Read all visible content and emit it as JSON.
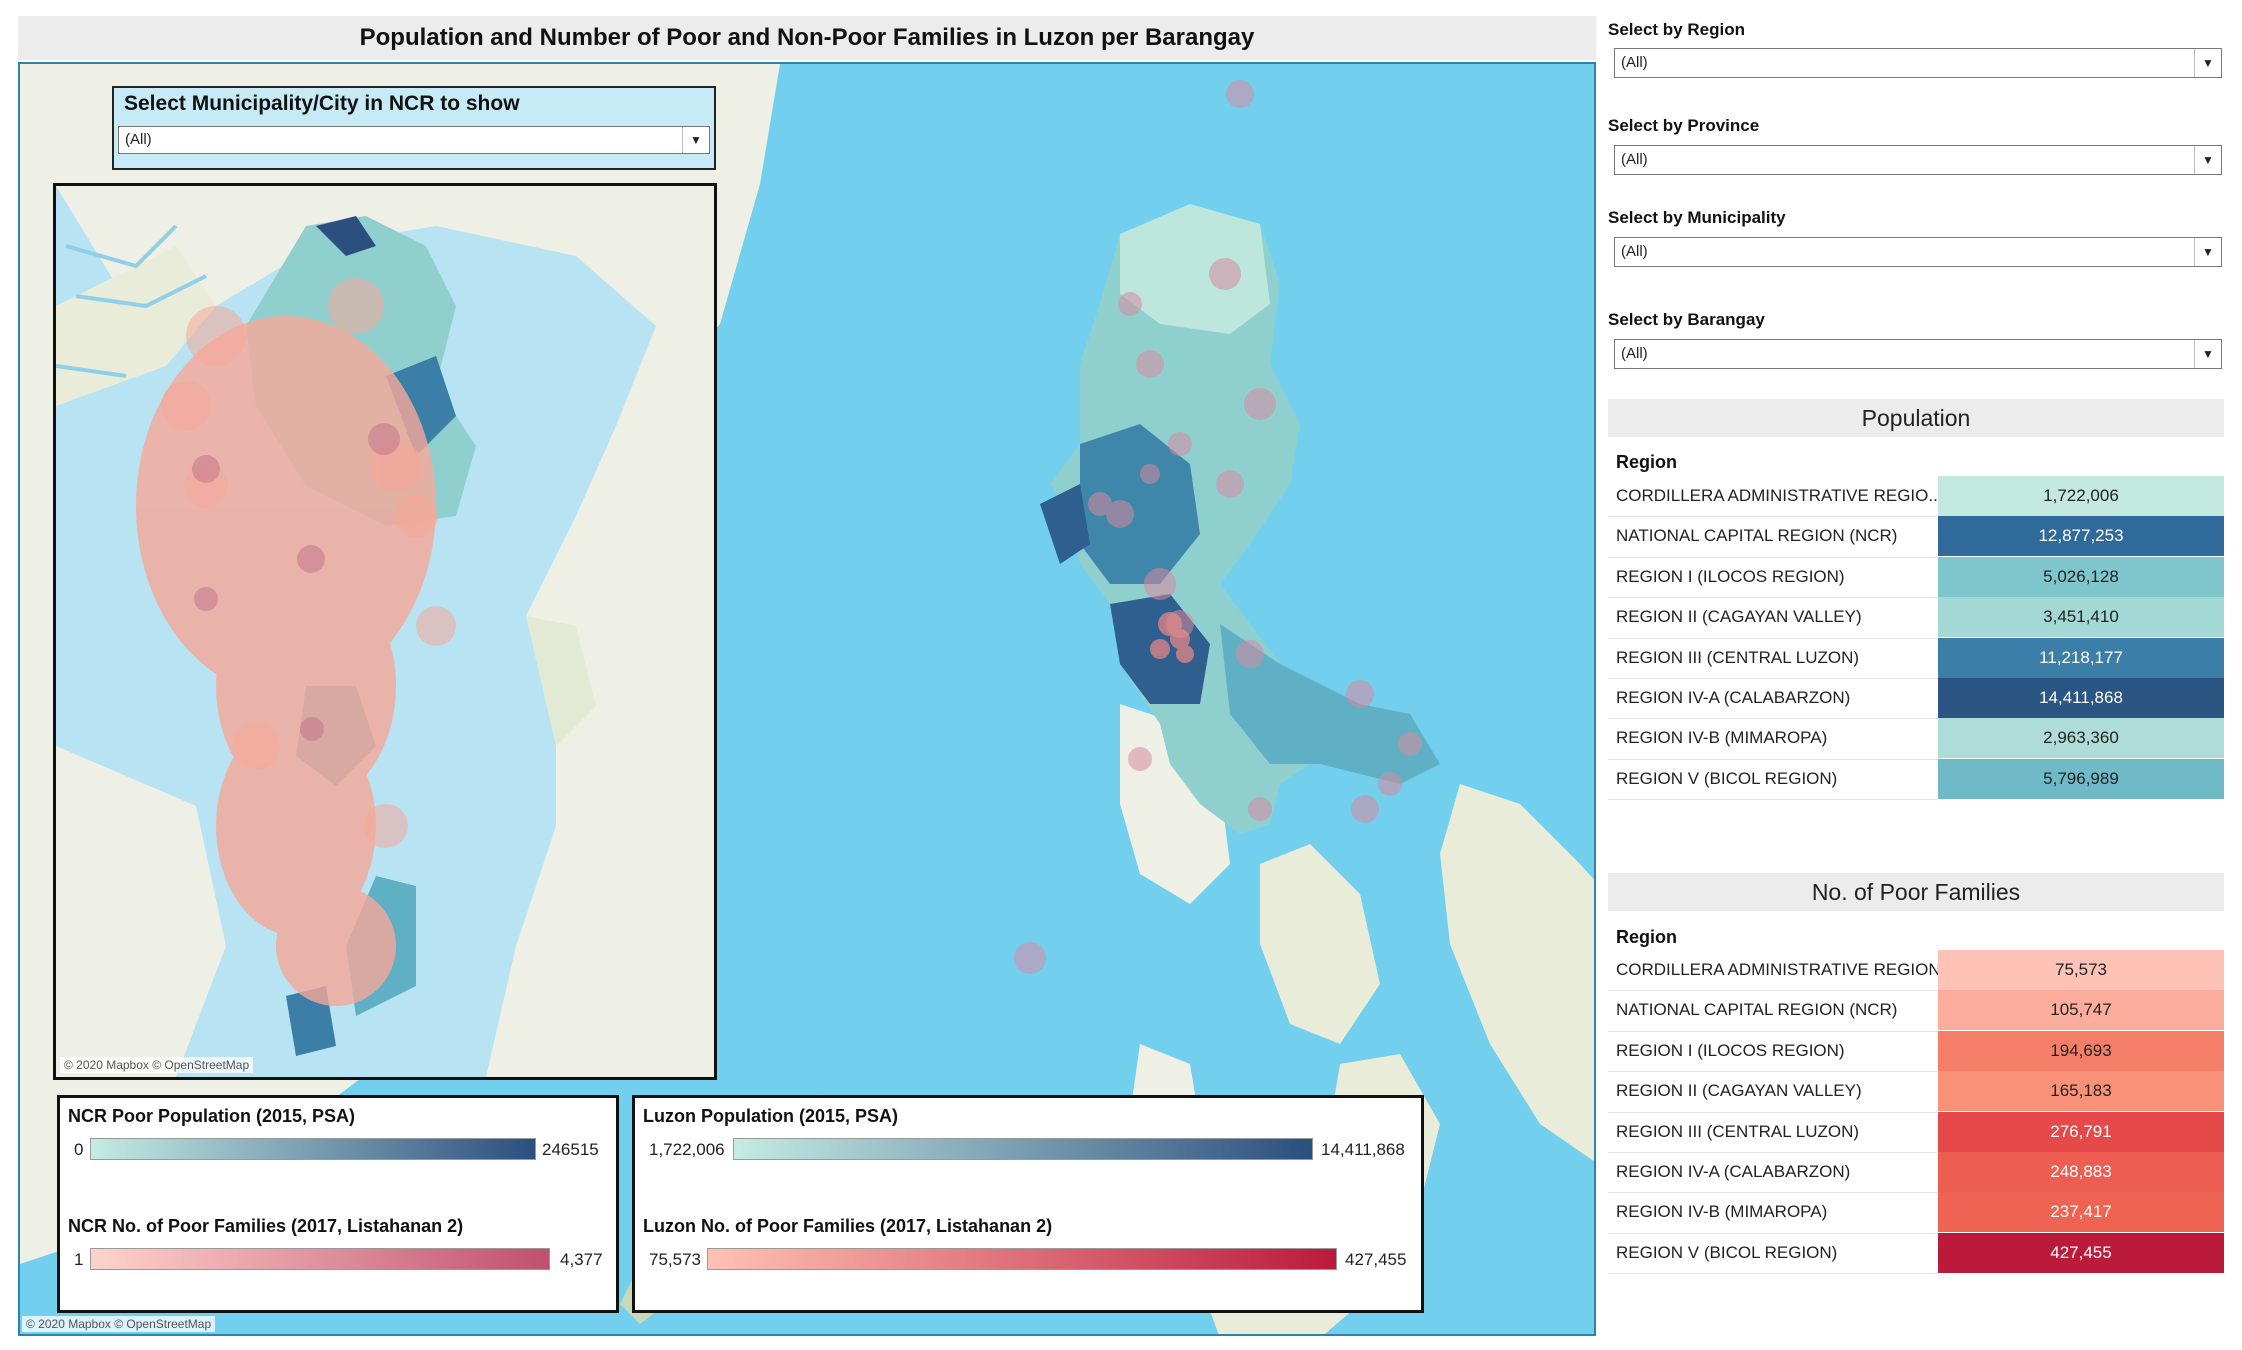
{
  "header": {
    "title": "Population and Number of Poor and Non-Poor Families in Luzon per Barangay"
  },
  "map": {
    "attribution": "© 2020 Mapbox © OpenStreetMap",
    "water_color": "#73cfee",
    "land_color": "#eef0e6"
  },
  "ncr_filter": {
    "label": "Select Municipality/City in NCR to show",
    "value": "(All)"
  },
  "inset": {
    "attribution": "© 2020 Mapbox © OpenStreetMap"
  },
  "legends": {
    "ncr_pop": {
      "title": "NCR Poor Population (2015, PSA)",
      "min": "0",
      "max": "246515",
      "color_start": "#c5ebe3",
      "color_end": "#2b4f7e"
    },
    "ncr_poor": {
      "title": "NCR No. of Poor Families (2017, Listahanan 2)",
      "min": "1",
      "max": "4,377",
      "color_start": "#ffd3cc",
      "color_end": "#c0506f"
    },
    "luzon_pop": {
      "title": "Luzon Population (2015, PSA)",
      "min": "1,722,006",
      "max": "14,411,868",
      "color_start": "#c5ebe3",
      "color_end": "#2b4f7e"
    },
    "luzon_poor": {
      "title": "Luzon No. of Poor Families (2017, Listahanan 2)",
      "min": "75,573",
      "max": "427,455",
      "color_start": "#ffc2b4",
      "color_end": "#bb1a3b"
    }
  },
  "filters": [
    {
      "label": "Select by Region",
      "value": "(All)"
    },
    {
      "label": "Select by Province",
      "value": "(All)"
    },
    {
      "label": "Select by Municipality",
      "value": "(All)"
    },
    {
      "label": "Select by Barangay",
      "value": "(All)"
    }
  ],
  "population": {
    "title": "Population",
    "column": "Region",
    "rows": [
      {
        "region": "CORDILLERA ADMINISTRATIVE REGIO..",
        "value": "1,722,006",
        "bg": "#c2e8df",
        "fg": "#222222"
      },
      {
        "region": "NATIONAL CAPITAL REGION (NCR)",
        "value": "12,877,253",
        "bg": "#2f6a9a",
        "fg": "#ffffff"
      },
      {
        "region": "REGION I (ILOCOS REGION)",
        "value": "5,026,128",
        "bg": "#7fc6cc",
        "fg": "#222222"
      },
      {
        "region": "REGION II (CAGAYAN VALLEY)",
        "value": "3,451,410",
        "bg": "#a3d8d5",
        "fg": "#222222"
      },
      {
        "region": "REGION III (CENTRAL LUZON)",
        "value": "11,218,177",
        "bg": "#3b7fa8",
        "fg": "#ffffff"
      },
      {
        "region": "REGION IV-A (CALABARZON)",
        "value": "14,411,868",
        "bg": "#2b5683",
        "fg": "#ffffff"
      },
      {
        "region": "REGION IV-B (MIMAROPA)",
        "value": "2,963,360",
        "bg": "#aedcd8",
        "fg": "#222222"
      },
      {
        "region": "REGION V (BICOL REGION)",
        "value": "5,796,989",
        "bg": "#70bac8",
        "fg": "#222222"
      }
    ]
  },
  "poor_families": {
    "title": "No. of Poor Families",
    "column": "Region",
    "rows": [
      {
        "region": "CORDILLERA ADMINISTRATIVE REGION..",
        "value": "75,573",
        "bg": "#fec3b6",
        "fg": "#222222"
      },
      {
        "region": "NATIONAL CAPITAL REGION (NCR)",
        "value": "105,747",
        "bg": "#fcad9c",
        "fg": "#222222"
      },
      {
        "region": "REGION I (ILOCOS REGION)",
        "value": "194,693",
        "bg": "#f47e68",
        "fg": "#222222"
      },
      {
        "region": "REGION II (CAGAYAN VALLEY)",
        "value": "165,183",
        "bg": "#f89178",
        "fg": "#222222"
      },
      {
        "region": "REGION III (CENTRAL LUZON)",
        "value": "276,791",
        "bg": "#e6494a",
        "fg": "#ffffff"
      },
      {
        "region": "REGION IV-A (CALABARZON)",
        "value": "248,883",
        "bg": "#ee5d52",
        "fg": "#ffffff"
      },
      {
        "region": "REGION IV-B (MIMAROPA)",
        "value": "237,417",
        "bg": "#ef6352",
        "fg": "#ffffff"
      },
      {
        "region": "REGION V (BICOL REGION)",
        "value": "427,455",
        "bg": "#bb1a3b",
        "fg": "#ffffff"
      }
    ]
  }
}
